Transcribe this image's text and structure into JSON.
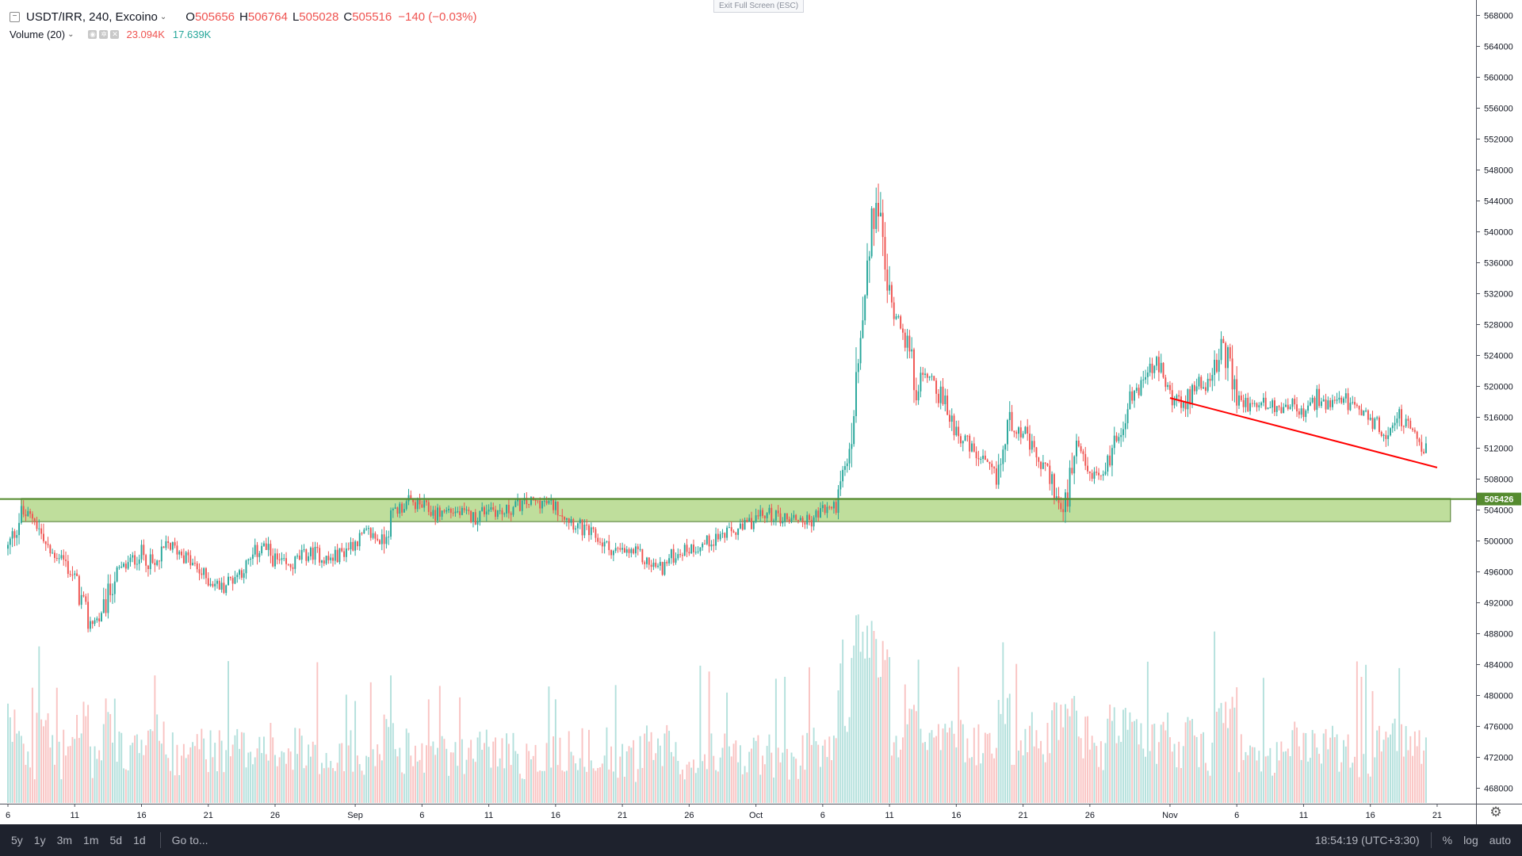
{
  "legend": {
    "symbol": "USDT/IRR, 240, Excoino",
    "o_label": "O",
    "o_val": "505656",
    "h_label": "H",
    "h_val": "506764",
    "l_label": "L",
    "l_val": "505028",
    "c_label": "C",
    "c_val": "505516",
    "change": "−140 (−0.03%)",
    "volume_label": "Volume (20)",
    "volume_val_a": "23.094K",
    "volume_val_b": "17.639K"
  },
  "exit_fullscreen": "Exit Full Screen (ESC)",
  "bottom_bar": {
    "ranges": [
      "5y",
      "1y",
      "3m",
      "1m",
      "5d",
      "1d"
    ],
    "goto": "Go to...",
    "time": "18:54:19 (UTC+3:30)",
    "percent": "%",
    "log": "log",
    "auto": "auto"
  },
  "colors": {
    "up": "#26a69a",
    "down": "#ef5350",
    "zone_fill": "#8bc34a",
    "price_line": "#558b2f",
    "trendline": "#ff0000"
  },
  "chart_data": {
    "type": "candlestick",
    "symbol": "USDT/IRR",
    "interval": "240",
    "exchange": "Excoino",
    "y_axis": {
      "range": [
        466000,
        570000
      ],
      "ticks": [
        468000,
        472000,
        476000,
        480000,
        484000,
        488000,
        492000,
        496000,
        500000,
        504000,
        508000,
        512000,
        516000,
        520000,
        524000,
        528000,
        532000,
        536000,
        540000,
        544000,
        548000,
        552000,
        556000,
        560000,
        564000,
        568000
      ]
    },
    "x_axis": {
      "ticks": [
        {
          "label": "6",
          "date": "2019-08-06"
        },
        {
          "label": "11",
          "date": "2019-08-11"
        },
        {
          "label": "16",
          "date": "2019-08-16"
        },
        {
          "label": "21",
          "date": "2019-08-21"
        },
        {
          "label": "26",
          "date": "2019-08-26"
        },
        {
          "label": "Sep",
          "date": "2019-09-01"
        },
        {
          "label": "6",
          "date": "2019-09-06"
        },
        {
          "label": "11",
          "date": "2019-09-11"
        },
        {
          "label": "16",
          "date": "2019-09-16"
        },
        {
          "label": "21",
          "date": "2019-09-21"
        },
        {
          "label": "26",
          "date": "2019-09-26"
        },
        {
          "label": "Oct",
          "date": "2019-10-01"
        },
        {
          "label": "6",
          "date": "2019-10-06"
        },
        {
          "label": "11",
          "date": "2019-10-11"
        },
        {
          "label": "16",
          "date": "2019-10-16"
        },
        {
          "label": "21",
          "date": "2019-10-21"
        },
        {
          "label": "26",
          "date": "2019-10-26"
        },
        {
          "label": "Nov",
          "date": "2019-11-01"
        },
        {
          "label": "6",
          "date": "2019-11-06"
        },
        {
          "label": "11",
          "date": "2019-11-11"
        },
        {
          "label": "16",
          "date": "2019-11-16"
        },
        {
          "label": "21",
          "date": "2019-11-21"
        }
      ]
    },
    "price_path": [
      [
        "2019-08-06",
        499000
      ],
      [
        "2019-08-07",
        503500
      ],
      [
        "2019-08-08",
        503000
      ],
      [
        "2019-08-09",
        498500
      ],
      [
        "2019-08-10",
        498000
      ],
      [
        "2019-08-11",
        495000
      ],
      [
        "2019-08-12",
        489500
      ],
      [
        "2019-08-13",
        490000
      ],
      [
        "2019-08-14",
        495500
      ],
      [
        "2019-08-15",
        497000
      ],
      [
        "2019-08-16",
        498500
      ],
      [
        "2019-08-17",
        496500
      ],
      [
        "2019-08-18",
        499500
      ],
      [
        "2019-08-19",
        498500
      ],
      [
        "2019-08-20",
        496500
      ],
      [
        "2019-08-21",
        495000
      ],
      [
        "2019-08-22",
        494000
      ],
      [
        "2019-08-23",
        495500
      ],
      [
        "2019-08-24",
        497000
      ],
      [
        "2019-08-25",
        499500
      ],
      [
        "2019-08-26",
        497500
      ],
      [
        "2019-08-27",
        496500
      ],
      [
        "2019-08-28",
        498000
      ],
      [
        "2019-08-29",
        498500
      ],
      [
        "2019-08-30",
        497500
      ],
      [
        "2019-08-31",
        498500
      ],
      [
        "2019-09-01",
        500000
      ],
      [
        "2019-09-02",
        501000
      ],
      [
        "2019-09-03",
        500000
      ],
      [
        "2019-09-04",
        504000
      ],
      [
        "2019-09-05",
        505000
      ],
      [
        "2019-09-06",
        504500
      ],
      [
        "2019-09-07",
        503500
      ],
      [
        "2019-09-08",
        504000
      ],
      [
        "2019-09-09",
        503500
      ],
      [
        "2019-09-10",
        503000
      ],
      [
        "2019-09-11",
        504500
      ],
      [
        "2019-09-12",
        503500
      ],
      [
        "2019-09-13",
        504500
      ],
      [
        "2019-09-14",
        505000
      ],
      [
        "2019-09-15",
        505000
      ],
      [
        "2019-09-16",
        504500
      ],
      [
        "2019-09-17",
        503000
      ],
      [
        "2019-09-18",
        501500
      ],
      [
        "2019-09-19",
        500500
      ],
      [
        "2019-09-20",
        499000
      ],
      [
        "2019-09-21",
        498500
      ],
      [
        "2019-09-22",
        498500
      ],
      [
        "2019-09-23",
        497000
      ],
      [
        "2019-09-24",
        496500
      ],
      [
        "2019-09-25",
        498500
      ],
      [
        "2019-09-26",
        499000
      ],
      [
        "2019-09-27",
        499500
      ],
      [
        "2019-09-28",
        500500
      ],
      [
        "2019-09-29",
        501000
      ],
      [
        "2019-09-30",
        501500
      ],
      [
        "2019-10-01",
        503000
      ],
      [
        "2019-10-02",
        503500
      ],
      [
        "2019-10-03",
        503000
      ],
      [
        "2019-10-04",
        503000
      ],
      [
        "2019-10-05",
        502500
      ],
      [
        "2019-10-06",
        504000
      ],
      [
        "2019-10-07",
        504500
      ],
      [
        "2019-10-08",
        511000
      ],
      [
        "2019-10-09",
        528000
      ],
      [
        "2019-10-10",
        545000
      ],
      [
        "2019-10-11",
        531000
      ],
      [
        "2019-10-12",
        528000
      ],
      [
        "2019-10-13",
        520000
      ],
      [
        "2019-10-14",
        522000
      ],
      [
        "2019-10-15",
        518000
      ],
      [
        "2019-10-16",
        514500
      ],
      [
        "2019-10-17",
        512000
      ],
      [
        "2019-10-18",
        510000
      ],
      [
        "2019-10-19",
        508000
      ],
      [
        "2019-10-20",
        515500
      ],
      [
        "2019-10-21",
        514000
      ],
      [
        "2019-10-22",
        510500
      ],
      [
        "2019-10-23",
        508500
      ],
      [
        "2019-10-24",
        503000
      ],
      [
        "2019-10-25",
        511500
      ],
      [
        "2019-10-26",
        508500
      ],
      [
        "2019-10-27",
        508500
      ],
      [
        "2019-10-28",
        513500
      ],
      [
        "2019-10-29",
        518000
      ],
      [
        "2019-10-30",
        521000
      ],
      [
        "2019-10-31",
        523000
      ],
      [
        "2019-11-01",
        519000
      ],
      [
        "2019-11-02",
        517000
      ],
      [
        "2019-11-03",
        521000
      ],
      [
        "2019-11-04",
        520000
      ],
      [
        "2019-11-05",
        525500
      ],
      [
        "2019-11-06",
        518500
      ],
      [
        "2019-11-07",
        517500
      ],
      [
        "2019-11-08",
        518000
      ],
      [
        "2019-11-09",
        517000
      ],
      [
        "2019-11-10",
        518000
      ],
      [
        "2019-11-11",
        516000
      ],
      [
        "2019-11-12",
        518500
      ],
      [
        "2019-11-13",
        517000
      ],
      [
        "2019-11-14",
        518500
      ],
      [
        "2019-11-15",
        516500
      ],
      [
        "2019-11-16",
        516000
      ],
      [
        "2019-11-17",
        513500
      ],
      [
        "2019-11-18",
        516500
      ],
      [
        "2019-11-19",
        514000
      ],
      [
        "2019-11-20",
        512000
      ],
      [
        "2019-11-21",
        507000
      ]
    ],
    "volume_range": [
      0,
      25000
    ],
    "annotations": {
      "support_zone": {
        "from_date": "2019-08-07",
        "to_date": "2019-11-22",
        "low": 502500,
        "high": 505500
      },
      "price_line": {
        "value": 505426,
        "label": "505426"
      },
      "trendline": {
        "start": [
          "2019-11-01",
          518500
        ],
        "end": [
          "2019-11-21",
          509500
        ]
      }
    }
  }
}
